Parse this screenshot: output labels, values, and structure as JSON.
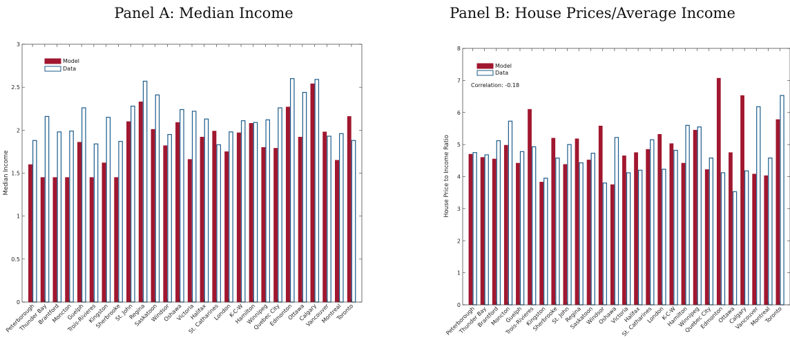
{
  "chart_data": [
    {
      "type": "bar",
      "title": "Panel A: Median Income",
      "ylabel": "Median Income",
      "ylim": [
        0,
        3
      ],
      "yticks": [
        "0",
        "0.5",
        "1",
        "1.5",
        "2",
        "2.5",
        "3"
      ],
      "legend": {
        "placement": "top-left",
        "entries": [
          "Model",
          "Data"
        ]
      },
      "annotation": "",
      "categories": [
        "Peterborough",
        "Thunder Bay",
        "Brantford",
        "Moncton",
        "Guelph",
        "Trois-Rivieres",
        "Kingston",
        "Sherbrooke",
        "St. John",
        "Regina",
        "Saskatoon",
        "Windsor",
        "Oshawa",
        "Victoria",
        "Halifax",
        "St. Catharines",
        "London",
        "K-C-W",
        "Hamilton",
        "Winnipeg",
        "Quebec City",
        "Edmonton",
        "Ottawa",
        "Calgary",
        "Vancouver",
        "Montreal",
        "Toronto"
      ],
      "series": [
        {
          "name": "Model",
          "color": "#a0172f",
          "values": [
            1.6,
            1.45,
            1.45,
            1.45,
            1.86,
            1.45,
            1.62,
            1.45,
            2.1,
            2.33,
            2.01,
            1.82,
            2.09,
            1.66,
            1.92,
            1.99,
            1.75,
            1.97,
            2.08,
            1.8,
            1.79,
            2.27,
            1.92,
            2.54,
            1.98,
            1.65,
            2.16
          ]
        },
        {
          "name": "Data",
          "color": "#1a5a8a",
          "values": [
            1.88,
            2.16,
            1.98,
            1.99,
            2.26,
            1.84,
            2.15,
            1.87,
            2.28,
            2.57,
            2.41,
            1.95,
            2.24,
            2.22,
            2.13,
            1.83,
            1.98,
            2.11,
            2.09,
            2.12,
            2.26,
            2.6,
            2.44,
            2.59,
            1.93,
            1.96,
            1.88
          ]
        }
      ]
    },
    {
      "type": "bar",
      "title": "Panel B: House Prices/Average Income",
      "ylabel": "House Price to Income Ratio",
      "ylim": [
        0,
        8
      ],
      "yticks": [
        "0",
        "1",
        "2",
        "3",
        "4",
        "5",
        "6",
        "7",
        "8"
      ],
      "legend": {
        "placement": "top-left",
        "entries": [
          "Model",
          "Data"
        ]
      },
      "annotation": "Correlation: -0.18",
      "categories": [
        "Peterborough",
        "Thunder Bay",
        "Brantford",
        "Moncton",
        "Guelph",
        "Trois-Rivieres",
        "Kingston",
        "Sherbrooke",
        "St. John",
        "Regina",
        "Saskatoon",
        "Windsor",
        "Oshawa",
        "Victoria",
        "Halifax",
        "St. Catharines",
        "London",
        "K-C-W",
        "Hamilton",
        "Winnipeg",
        "Quebec City",
        "Edmonton",
        "Ottawa",
        "Calgary",
        "Vancouver",
        "Montreal",
        "Toronto"
      ],
      "series": [
        {
          "name": "Model",
          "color": "#a0172f",
          "values": [
            4.7,
            4.6,
            4.55,
            4.98,
            4.42,
            6.1,
            3.83,
            5.2,
            4.38,
            5.18,
            4.52,
            5.58,
            3.75,
            4.65,
            4.75,
            4.85,
            5.32,
            5.03,
            4.42,
            5.45,
            4.22,
            7.07,
            4.75,
            6.53,
            4.08,
            4.03,
            5.78
          ]
        },
        {
          "name": "Data",
          "color": "#1a5a8a",
          "values": [
            4.75,
            4.68,
            5.12,
            5.73,
            4.78,
            4.93,
            3.95,
            4.58,
            5.0,
            4.43,
            4.73,
            3.8,
            5.22,
            4.12,
            4.2,
            5.15,
            4.23,
            4.82,
            5.6,
            5.55,
            4.58,
            4.12,
            3.53,
            4.18,
            6.18,
            4.58,
            6.53
          ]
        }
      ]
    }
  ]
}
